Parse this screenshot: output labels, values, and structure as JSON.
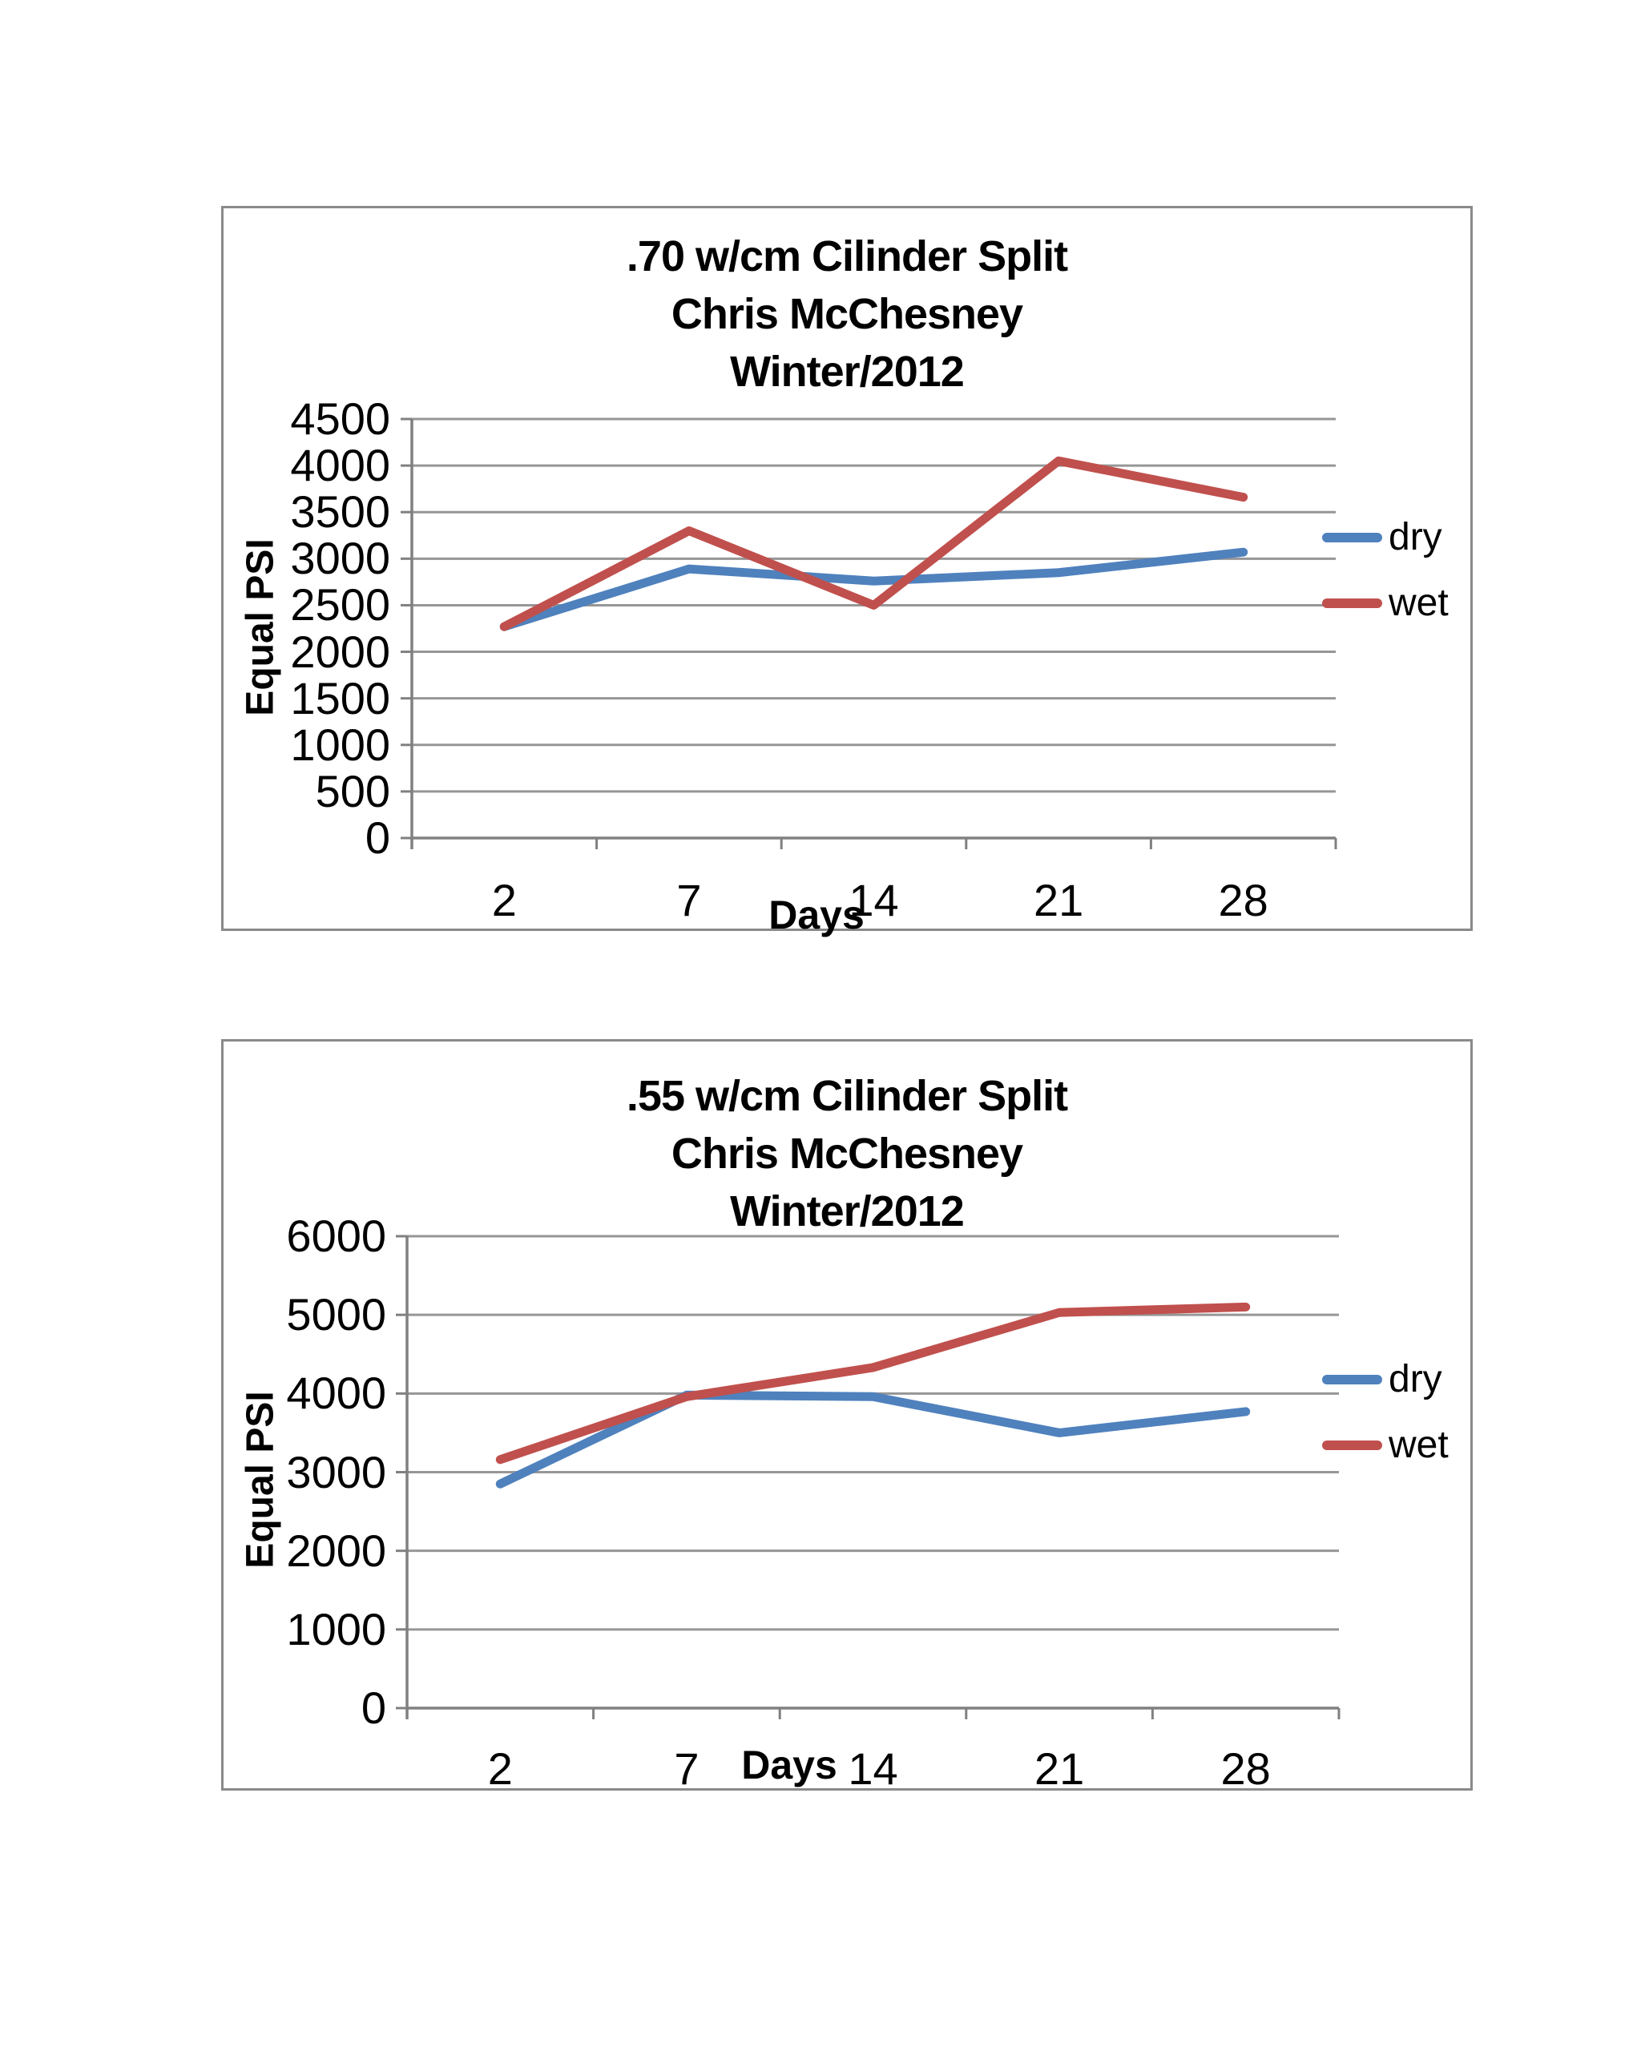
{
  "colors": {
    "dry": "#4F81BD",
    "wet": "#C0504D",
    "gridline": "#969696",
    "axis": "#808080",
    "box_border": "#8a8a8a",
    "text": "#000000"
  },
  "chart_data": [
    {
      "type": "line",
      "title": ".70 w/cm Cilinder Split Chris McChesney Winter/2012",
      "title_lines": [
        ".70 w/cm Cilinder Split",
        "Chris McChesney",
        "Winter/2012"
      ],
      "xlabel": "Days",
      "ylabel": "Equal PSI",
      "categories": [
        2,
        7,
        14,
        21,
        28
      ],
      "x_tick_labels": [
        "2",
        "7",
        "14",
        "21",
        "28"
      ],
      "ylim": [
        0,
        4500
      ],
      "ytick_step": 500,
      "y_tick_labels": [
        "4500",
        "4000",
        "3500",
        "3000",
        "2500",
        "2000",
        "1500",
        "1000",
        "500",
        "0"
      ],
      "grid": true,
      "legend_position": "right",
      "series": [
        {
          "name": "dry",
          "color": "#4F81BD",
          "values": [
            2270,
            2890,
            2760,
            2850,
            3070
          ]
        },
        {
          "name": "wet",
          "color": "#C0504D",
          "values": [
            2270,
            3300,
            2500,
            4050,
            3660
          ]
        }
      ]
    },
    {
      "type": "line",
      "title": ".55 w/cm Cilinder Split Chris McChesney Winter/2012",
      "title_lines": [
        ".55 w/cm Cilinder Split",
        "Chris McChesney",
        "Winter/2012"
      ],
      "xlabel": "Days",
      "ylabel": "Equal PSI",
      "categories": [
        2,
        7,
        14,
        21,
        28
      ],
      "x_tick_labels": [
        "2",
        "7",
        "14",
        "21",
        "28"
      ],
      "ylim": [
        0,
        6000
      ],
      "ytick_step": 1000,
      "y_tick_labels": [
        "6000",
        "5000",
        "4000",
        "3000",
        "2000",
        "1000",
        "0"
      ],
      "grid": true,
      "legend_position": "right",
      "series": [
        {
          "name": "dry",
          "color": "#4F81BD",
          "values": [
            2850,
            3980,
            3960,
            3500,
            3770
          ]
        },
        {
          "name": "wet",
          "color": "#C0504D",
          "values": [
            3160,
            3960,
            4330,
            5030,
            5100
          ]
        }
      ]
    }
  ]
}
